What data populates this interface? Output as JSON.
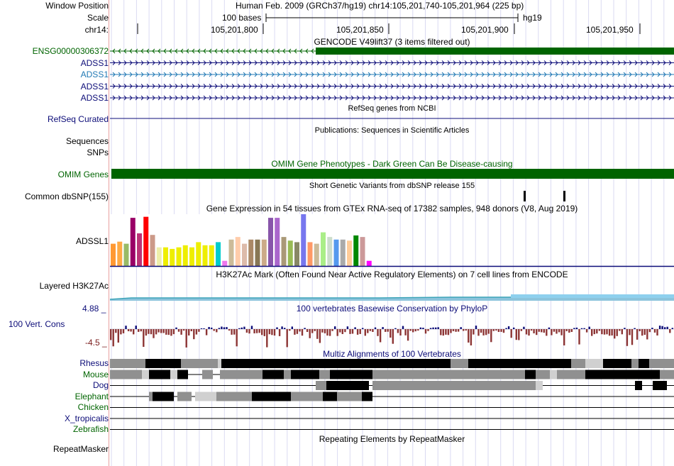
{
  "header": {
    "window_position_label": "Window Position",
    "scale_label": "Scale",
    "chrom_label": "chr14:",
    "position_text": "Human Feb. 2009 (GRCh37/hg19)   chr14:105,201,740-105,201,964 (225 bp)",
    "scale_text": "100 bases",
    "assembly": "hg19",
    "ruler_ticks": [
      "105,201,800",
      "105,201,850",
      "105,201,900",
      "105,201,950"
    ]
  },
  "tracks": {
    "gencode": {
      "title": "GENCODE V49lift37 (3 items filtered out)",
      "items": [
        {
          "label": "ENSG00000306372",
          "color": "#006400"
        },
        {
          "label": "ADSS1",
          "color": "#0c0c78"
        },
        {
          "label": "ADSS1",
          "color": "#1f78b4"
        },
        {
          "label": "ADSS1",
          "color": "#0c0c78"
        },
        {
          "label": "ADSS1",
          "color": "#0c0c78"
        }
      ]
    },
    "refseq": {
      "label": "RefSeq Curated",
      "title": "RefSeq genes from NCBI"
    },
    "publications": {
      "label": "Sequences",
      "title": "Publications: Sequences in Scientific Articles"
    },
    "snps_label": "SNPs",
    "omim": {
      "label": "OMIM Genes",
      "title": "OMIM Gene Phenotypes - Dark Green Can Be Disease-causing",
      "color": "#006400"
    },
    "dbsnp": {
      "label": "Common dbSNP(155)",
      "title": "Short Genetic Variants from dbSNP release 155"
    },
    "gtex": {
      "label": "ADSSL1",
      "title": "Gene Expression in 54 tissues from GTEx RNA-seq of 17382 samples, 948 donors (V8, Aug 2019)",
      "bars": [
        {
          "color": "#ff9933",
          "value": 0.43
        },
        {
          "color": "#ffaa44",
          "value": 0.47
        },
        {
          "color": "#99bb66",
          "value": 0.43
        },
        {
          "color": "#990066",
          "value": 0.93
        },
        {
          "color": "#bb3377",
          "value": 0.63
        },
        {
          "color": "#ff0000",
          "value": 0.95
        },
        {
          "color": "#cc9988",
          "value": 0.6
        },
        {
          "color": "#eeeeaa",
          "value": 0.36
        },
        {
          "color": "#eeee00",
          "value": 0.36
        },
        {
          "color": "#eeee00",
          "value": 0.33
        },
        {
          "color": "#eeee00",
          "value": 0.36
        },
        {
          "color": "#eeee00",
          "value": 0.4
        },
        {
          "color": "#eeee00",
          "value": 0.36
        },
        {
          "color": "#eeee00",
          "value": 0.46
        },
        {
          "color": "#eeee00",
          "value": 0.4
        },
        {
          "color": "#eeee00",
          "value": 0.4
        },
        {
          "color": "#00cccc",
          "value": 0.46
        },
        {
          "color": "#ee77ee",
          "value": 0.1
        },
        {
          "color": "#ccbb99",
          "value": 0.51
        },
        {
          "color": "#ffccaa",
          "value": 0.56
        },
        {
          "color": "#ddbbaa",
          "value": 0.43
        },
        {
          "color": "#aa8866",
          "value": 0.51
        },
        {
          "color": "#887755",
          "value": 0.51
        },
        {
          "color": "#ccaa88",
          "value": 0.51
        },
        {
          "color": "#8855aa",
          "value": 0.93
        },
        {
          "color": "#aa66cc",
          "value": 0.93
        },
        {
          "color": "#aa9977",
          "value": 0.56
        },
        {
          "color": "#99bb55",
          "value": 0.49
        },
        {
          "color": "#888866",
          "value": 0.46
        },
        {
          "color": "#7777ee",
          "value": 1.0
        },
        {
          "color": "#ff9966",
          "value": 0.46
        },
        {
          "color": "#ccbb99",
          "value": 0.43
        },
        {
          "color": "#aaee88",
          "value": 0.65
        },
        {
          "color": "#ccddcc",
          "value": 0.56
        },
        {
          "color": "#5599ee",
          "value": 0.51
        },
        {
          "color": "#aaaaaa",
          "value": 0.51
        },
        {
          "color": "#ffcc99",
          "value": 0.49
        },
        {
          "color": "#008800",
          "value": 0.59
        },
        {
          "color": "#cc9999",
          "value": 0.56
        },
        {
          "color": "#ff00ff",
          "value": 0.1
        }
      ]
    },
    "h3k27ac": {
      "label": "Layered H3K27Ac",
      "title": "H3K27Ac Mark (Often Found Near Active Regulatory Elements) on 7 cell lines from ENCODE"
    },
    "conservation": {
      "label": "100 Vert. Cons",
      "title": "100 vertebrates Basewise Conservation by PhyloP",
      "ymax": "4.88 _",
      "ymin": "-4.5 _"
    },
    "multiz": {
      "title": "Multiz Alignments of 100 Vertebrates",
      "species": [
        {
          "name": "Rhesus",
          "color": "#0c0c78"
        },
        {
          "name": "Mouse",
          "color": "#006400"
        },
        {
          "name": "Dog",
          "color": "#0c0c78"
        },
        {
          "name": "Elephant",
          "color": "#006400"
        },
        {
          "name": "Chicken",
          "color": "#006400"
        },
        {
          "name": "X_tropicalis",
          "color": "#0c0c78"
        },
        {
          "name": "Zebrafish",
          "color": "#006400"
        }
      ]
    },
    "repeatmasker": {
      "label": "RepeatMasker",
      "title": "Repeating Elements by RepeatMasker"
    }
  }
}
